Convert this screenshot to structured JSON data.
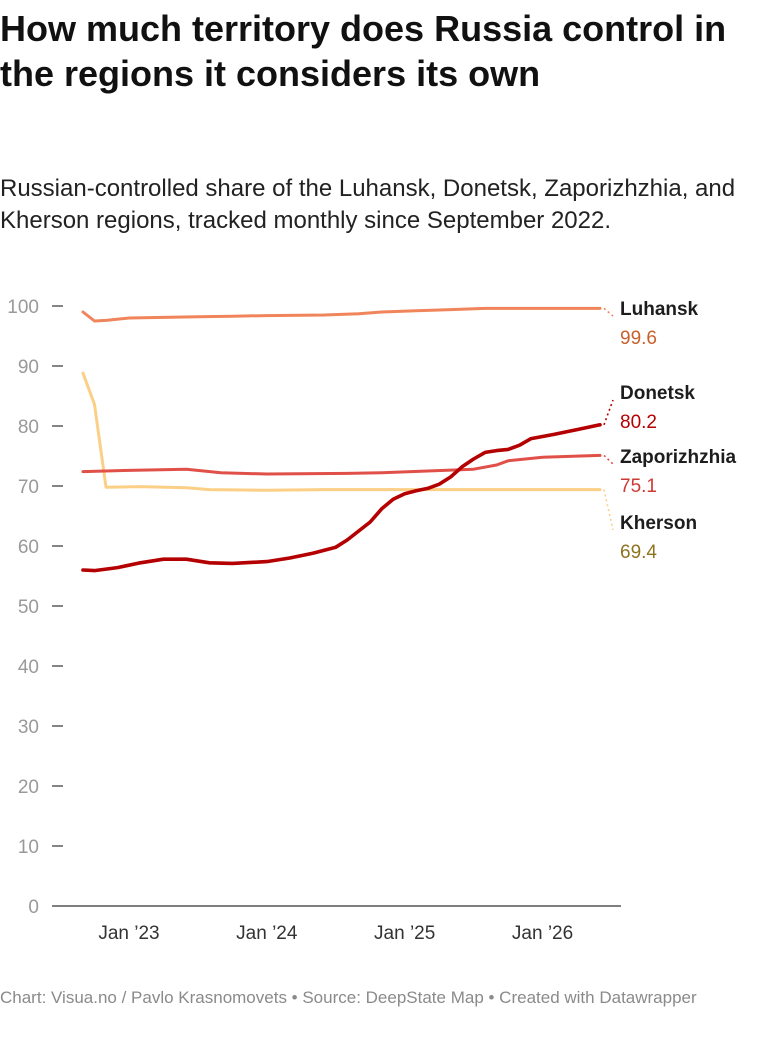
{
  "title": "How much territory does Russia control in the regions it considers its own",
  "subtitle": "Russian-controlled share of the Luhansk, Donetsk, Zaporizhzhia, and Kherson regions, tracked monthly since September 2022.",
  "footer": "Chart: Visua.no / Pavlo Krasnomovets • Source: DeepState Map • Created with Datawrapper",
  "chart_data": {
    "type": "line",
    "title": "How much territory does Russia control in the regions it considers its own",
    "xlabel": "",
    "ylabel": "",
    "ylim": [
      0,
      100
    ],
    "y_ticks": [
      "0",
      "10",
      "20",
      "30",
      "40",
      "50",
      "60",
      "70",
      "80",
      "90",
      "100"
    ],
    "x_ticks": [
      {
        "label": "Jan ’23",
        "date": "2023-01"
      },
      {
        "label": "Jan ’24",
        "date": "2024-01"
      },
      {
        "label": "Jan ’25",
        "date": "2025-01"
      },
      {
        "label": "Jan ’26",
        "date": "2026-01"
      }
    ],
    "x_range": [
      "2022-09",
      "2026-06"
    ],
    "grid": false,
    "legend": "direct labels at line ends (right)",
    "series": [
      {
        "name": "Luhansk",
        "end_label": "99.6",
        "color": "#f0845a",
        "label_color": "#c8602c",
        "points": [
          [
            "2022-09",
            99.0
          ],
          [
            "2022-10",
            97.5
          ],
          [
            "2022-11",
            97.6
          ],
          [
            "2023-01",
            98.0
          ],
          [
            "2023-04",
            98.1
          ],
          [
            "2023-07",
            98.2
          ],
          [
            "2023-10",
            98.3
          ],
          [
            "2024-01",
            98.4
          ],
          [
            "2024-06",
            98.5
          ],
          [
            "2024-09",
            98.7
          ],
          [
            "2024-11",
            99.0
          ],
          [
            "2025-02",
            99.2
          ],
          [
            "2025-05",
            99.4
          ],
          [
            "2025-08",
            99.6
          ],
          [
            "2026-06",
            99.6
          ]
        ]
      },
      {
        "name": "Donetsk",
        "end_label": "80.2",
        "color": "#b40000",
        "label_color": "#b40000",
        "points": [
          [
            "2022-09",
            56.0
          ],
          [
            "2022-10",
            55.9
          ],
          [
            "2022-12",
            56.4
          ],
          [
            "2023-02",
            57.2
          ],
          [
            "2023-04",
            57.8
          ],
          [
            "2023-06",
            57.8
          ],
          [
            "2023-08",
            57.2
          ],
          [
            "2023-10",
            57.1
          ],
          [
            "2024-01",
            57.4
          ],
          [
            "2024-03",
            58.0
          ],
          [
            "2024-05",
            58.8
          ],
          [
            "2024-07",
            59.8
          ],
          [
            "2024-08",
            61.0
          ],
          [
            "2024-09",
            62.5
          ],
          [
            "2024-10",
            64.0
          ],
          [
            "2024-11",
            66.2
          ],
          [
            "2024-12",
            67.8
          ],
          [
            "2025-01",
            68.7
          ],
          [
            "2025-02",
            69.2
          ],
          [
            "2025-03",
            69.6
          ],
          [
            "2025-04",
            70.3
          ],
          [
            "2025-05",
            71.5
          ],
          [
            "2025-06",
            73.2
          ],
          [
            "2025-07",
            74.5
          ],
          [
            "2025-08",
            75.6
          ],
          [
            "2025-09",
            75.9
          ],
          [
            "2025-10",
            76.1
          ],
          [
            "2025-11",
            76.8
          ],
          [
            "2025-12",
            77.9
          ],
          [
            "2026-02",
            78.6
          ],
          [
            "2026-04",
            79.4
          ],
          [
            "2026-06",
            80.2
          ]
        ]
      },
      {
        "name": "Zaporizhzhia",
        "end_label": "75.1",
        "color": "#e05048",
        "label_color": "#cc3a33",
        "points": [
          [
            "2022-09",
            72.4
          ],
          [
            "2023-01",
            72.6
          ],
          [
            "2023-06",
            72.8
          ],
          [
            "2023-09",
            72.2
          ],
          [
            "2024-01",
            72.0
          ],
          [
            "2024-08",
            72.1
          ],
          [
            "2024-11",
            72.2
          ],
          [
            "2025-03",
            72.5
          ],
          [
            "2025-07",
            72.8
          ],
          [
            "2025-09",
            73.5
          ],
          [
            "2025-10",
            74.2
          ],
          [
            "2026-01",
            74.8
          ],
          [
            "2026-06",
            75.1
          ]
        ]
      },
      {
        "name": "Kherson",
        "end_label": "69.4",
        "color": "#fccf86",
        "label_color": "#8f7420",
        "points": [
          [
            "2022-09",
            88.8
          ],
          [
            "2022-10",
            83.6
          ],
          [
            "2022-11",
            69.8
          ],
          [
            "2023-02",
            69.9
          ],
          [
            "2023-06",
            69.7
          ],
          [
            "2023-08",
            69.4
          ],
          [
            "2024-01",
            69.3
          ],
          [
            "2024-06",
            69.4
          ],
          [
            "2026-06",
            69.4
          ]
        ]
      }
    ]
  }
}
